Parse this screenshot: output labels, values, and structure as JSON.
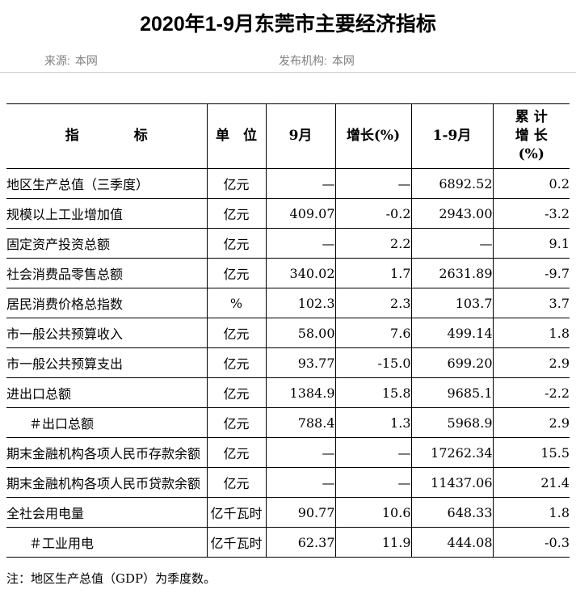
{
  "page": {
    "title": "2020年1-9月东莞市主要经济指标",
    "meta": {
      "source_label": "来源:",
      "source_value": "本网",
      "publisher_label": "发布机构:",
      "publisher_value": "本网"
    },
    "footnote": "注：地区生产总值（GDP）为季度数。"
  },
  "colors": {
    "table_border": "#000000",
    "meta_separator": "#ccd1d1",
    "meta_text": "#808080",
    "title_text": "#000000"
  },
  "table": {
    "columns": {
      "indicator": "指　　　　标",
      "unit": "单　位",
      "september": "9月",
      "growth": "增长(%)",
      "jan_sep": "1-9月",
      "cumulative_growth": "累 计\n增 长\n(%)"
    },
    "rows": [
      {
        "indicator": "地区生产总值（三季度）",
        "indent": false,
        "unit": "亿元",
        "september": "—",
        "growth": "—",
        "jan_sep": "6892.52",
        "cum_growth": "0.2"
      },
      {
        "indicator": "规模以上工业增加值",
        "indent": false,
        "unit": "亿元",
        "september": "409.07",
        "growth": "-0.2",
        "jan_sep": "2943.00",
        "cum_growth": "-3.2"
      },
      {
        "indicator": "固定资产投资总额",
        "indent": false,
        "unit": "亿元",
        "september": "—",
        "growth": "2.2",
        "jan_sep": "—",
        "cum_growth": "9.1"
      },
      {
        "indicator": "社会消费品零售总额",
        "indent": false,
        "unit": "亿元",
        "september": "340.02",
        "growth": "1.7",
        "jan_sep": "2631.89",
        "cum_growth": "-9.7"
      },
      {
        "indicator": "居民消费价格总指数",
        "indent": false,
        "unit": "%",
        "september": "102.3",
        "growth": "2.3",
        "jan_sep": "103.7",
        "cum_growth": "3.7"
      },
      {
        "indicator": "市一般公共预算收入",
        "indent": false,
        "unit": "亿元",
        "september": "58.00",
        "growth": "7.6",
        "jan_sep": "499.14",
        "cum_growth": "1.8"
      },
      {
        "indicator": "市一般公共预算支出",
        "indent": false,
        "unit": "亿元",
        "september": "93.77",
        "growth": "-15.0",
        "jan_sep": "699.20",
        "cum_growth": "2.9"
      },
      {
        "indicator": "进出口总额",
        "indent": false,
        "unit": "亿元",
        "september": "1384.9",
        "growth": "15.8",
        "jan_sep": "9685.1",
        "cum_growth": "-2.2"
      },
      {
        "indicator": "＃出口总额",
        "indent": true,
        "unit": "亿元",
        "september": "788.4",
        "growth": "1.3",
        "jan_sep": "5968.9",
        "cum_growth": "2.9"
      },
      {
        "indicator": "期末金融机构各项人民币存款余额",
        "indent": false,
        "unit": "亿元",
        "september": "—",
        "growth": "—",
        "jan_sep": "17262.34",
        "cum_growth": "15.5"
      },
      {
        "indicator": "期末金融机构各项人民币贷款余额",
        "indent": false,
        "unit": "亿元",
        "september": "—",
        "growth": "—",
        "jan_sep": "11437.06",
        "cum_growth": "21.4"
      },
      {
        "indicator": "全社会用电量",
        "indent": false,
        "unit": "亿千瓦时",
        "september": "90.77",
        "growth": "10.6",
        "jan_sep": "648.33",
        "cum_growth": "1.8"
      },
      {
        "indicator": "＃工业用电",
        "indent": true,
        "unit": "亿千瓦时",
        "september": "62.37",
        "growth": "11.9",
        "jan_sep": "444.08",
        "cum_growth": "-0.3"
      }
    ]
  }
}
